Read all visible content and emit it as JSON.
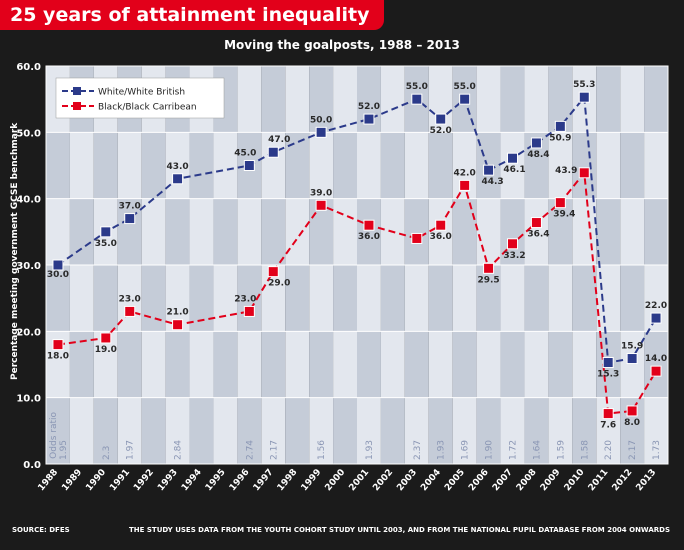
{
  "banner_title": "25 years of attainment inequality",
  "source_note": "SOURCE: DFES",
  "study_note": "THE STUDY USES DATA FROM THE YOUTH COHORT STUDY UNTIL 2003, AND FROM THE NATIONAL PUPIL DATABASE FROM 2004 ONWARDS",
  "colors": {
    "banner": "#e2001a",
    "white_series": "#2b3a8a",
    "black_series": "#e2001a",
    "background": "#1b1b1b",
    "odds_text": "#8a96b4"
  },
  "chart_data": {
    "type": "line",
    "title": "Moving the goalposts, 1988 – 2013",
    "ylabel": "Percentage meeting government GCSE benchmark",
    "xlabel": "",
    "ylim": [
      0,
      60
    ],
    "yticks": [
      "0.0",
      "10.0",
      "20.0",
      "30.0",
      "40.0",
      "50.0",
      "60.0"
    ],
    "categories": [
      "1988",
      "1989",
      "1990",
      "1991",
      "1992",
      "1993",
      "1994",
      "1995",
      "1996",
      "1997",
      "1998",
      "1999",
      "2000",
      "2001",
      "2002",
      "2003",
      "2004",
      "2005",
      "2006",
      "2007",
      "2008",
      "2009",
      "2010",
      "2011",
      "2012",
      "2013"
    ],
    "legend_position": "top-left",
    "grid": true,
    "series": [
      {
        "name": "White/White British",
        "points": [
          {
            "x": "1988",
            "y": 30.0,
            "label": "30.0"
          },
          {
            "x": "1990",
            "y": 35.0,
            "label": "35.0"
          },
          {
            "x": "1991",
            "y": 37.0,
            "label": "37.0"
          },
          {
            "x": "1993",
            "y": 43.0,
            "label": "43.0"
          },
          {
            "x": "1996",
            "y": 45.0,
            "label": "45.0"
          },
          {
            "x": "1997",
            "y": 47.0,
            "label": "47.0"
          },
          {
            "x": "1999",
            "y": 50.0,
            "label": "50.0"
          },
          {
            "x": "2001",
            "y": 52.0,
            "label": "52.0"
          },
          {
            "x": "2003",
            "y": 55.0,
            "label": "55.0"
          },
          {
            "x": "2004",
            "y": 52.0,
            "label": "52.0"
          },
          {
            "x": "2005",
            "y": 55.0,
            "label": "55.0"
          },
          {
            "x": "2006",
            "y": 44.3,
            "label": "44.3"
          },
          {
            "x": "2007",
            "y": 46.1,
            "label": "46.1"
          },
          {
            "x": "2008",
            "y": 48.4,
            "label": "48.4"
          },
          {
            "x": "2009",
            "y": 50.9,
            "label": "50.9"
          },
          {
            "x": "2010",
            "y": 55.3,
            "label": "55.3"
          },
          {
            "x": "2011",
            "y": 15.3,
            "label": "15.3"
          },
          {
            "x": "2012",
            "y": 15.9,
            "label": "15.9"
          },
          {
            "x": "2013",
            "y": 22.0,
            "label": "22.0"
          }
        ]
      },
      {
        "name": "Black/Black Carribean",
        "points": [
          {
            "x": "1988",
            "y": 18.0,
            "label": "18.0"
          },
          {
            "x": "1990",
            "y": 19.0,
            "label": "19.0"
          },
          {
            "x": "1991",
            "y": 23.0,
            "label": "23.0"
          },
          {
            "x": "1993",
            "y": 21.0,
            "label": "21.0"
          },
          {
            "x": "1996",
            "y": 23.0,
            "label": "23.0"
          },
          {
            "x": "1997",
            "y": 29.0,
            "label": "29.0"
          },
          {
            "x": "1999",
            "y": 39.0,
            "label": "39.0"
          },
          {
            "x": "2001",
            "y": 36.0,
            "label": "36.0"
          },
          {
            "x": "2003",
            "y": 34.0,
            "label": ""
          },
          {
            "x": "2004",
            "y": 36.0,
            "label": "36.0"
          },
          {
            "x": "2005",
            "y": 42.0,
            "label": "42.0"
          },
          {
            "x": "2006",
            "y": 29.5,
            "label": "29.5"
          },
          {
            "x": "2007",
            "y": 33.2,
            "label": "33.2"
          },
          {
            "x": "2008",
            "y": 36.4,
            "label": "36.4"
          },
          {
            "x": "2009",
            "y": 39.4,
            "label": "39.4"
          },
          {
            "x": "2010",
            "y": 43.9,
            "label": "43.9"
          },
          {
            "x": "2011",
            "y": 7.6,
            "label": "7.6"
          },
          {
            "x": "2012",
            "y": 8.0,
            "label": "8.0"
          },
          {
            "x": "2013",
            "y": 14.0,
            "label": "14.0"
          }
        ]
      }
    ],
    "odds_ratio_title": "Odds ratio",
    "odds_ratios": [
      {
        "x": "1988",
        "value": "1.95"
      },
      {
        "x": "1990",
        "value": "2.3"
      },
      {
        "x": "1991",
        "value": "1.97"
      },
      {
        "x": "1993",
        "value": "2.84"
      },
      {
        "x": "1996",
        "value": "2.74"
      },
      {
        "x": "1997",
        "value": "2.17"
      },
      {
        "x": "1999",
        "value": "1.56"
      },
      {
        "x": "2001",
        "value": "1.93"
      },
      {
        "x": "2003",
        "value": "2.37"
      },
      {
        "x": "2004",
        "value": "1.93"
      },
      {
        "x": "2005",
        "value": "1.69"
      },
      {
        "x": "2006",
        "value": "1.90"
      },
      {
        "x": "2007",
        "value": "1.72"
      },
      {
        "x": "2008",
        "value": "1.64"
      },
      {
        "x": "2009",
        "value": "1.59"
      },
      {
        "x": "2010",
        "value": "1.58"
      },
      {
        "x": "2011",
        "value": "2.20"
      },
      {
        "x": "2012",
        "value": "2.17"
      },
      {
        "x": "2013",
        "value": "1.73"
      }
    ]
  }
}
